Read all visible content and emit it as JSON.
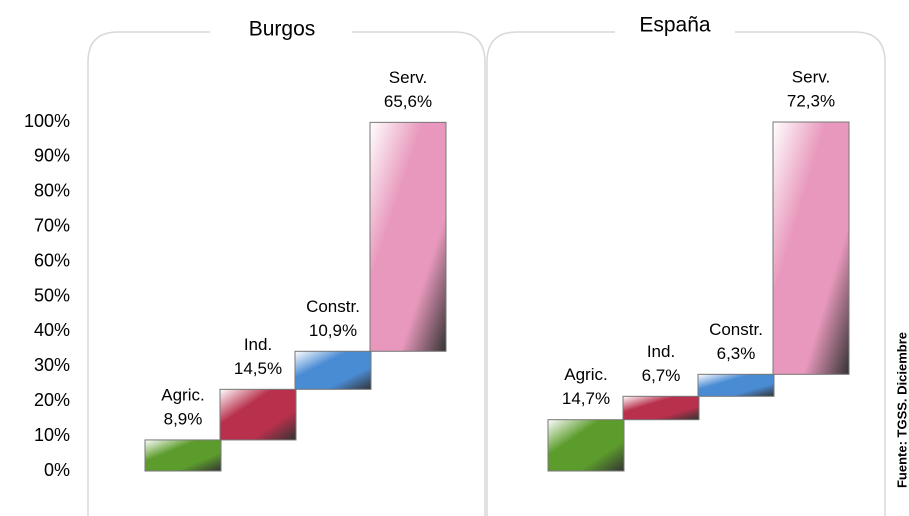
{
  "chart_data": [
    {
      "type": "waterfall",
      "title": "Burgos",
      "categories": [
        "Agric.",
        "Ind.",
        "Constr.",
        "Serv."
      ],
      "values": [
        8.9,
        14.5,
        10.9,
        65.6
      ],
      "value_labels": [
        "8,9%",
        "14,5%",
        "10,9%",
        "65,6%"
      ],
      "colors": [
        "#5c9c2c",
        "#b8304c",
        "#4a8cd4",
        "#e898bc"
      ],
      "ylim": [
        0,
        100
      ],
      "yticks": [
        {
          "value": 0,
          "label": "0%"
        },
        {
          "value": 10,
          "label": "10%"
        },
        {
          "value": 20,
          "label": "20%"
        },
        {
          "value": 30,
          "label": "30%"
        },
        {
          "value": 40,
          "label": "40%"
        },
        {
          "value": 50,
          "label": "50%"
        },
        {
          "value": 60,
          "label": "60%"
        },
        {
          "value": 70,
          "label": "70%"
        },
        {
          "value": 80,
          "label": "80%"
        },
        {
          "value": 90,
          "label": "90%"
        },
        {
          "value": 100,
          "label": "100%"
        }
      ]
    },
    {
      "type": "waterfall",
      "title": "España",
      "categories": [
        "Agric.",
        "Ind.",
        "Constr.",
        "Serv."
      ],
      "values": [
        14.7,
        6.7,
        6.3,
        72.3
      ],
      "value_labels": [
        "14,7%",
        "6,7%",
        "6,3%",
        "72,3%"
      ],
      "colors": [
        "#5c9c2c",
        "#b8304c",
        "#4a8cd4",
        "#e898bc"
      ],
      "ylim": [
        0,
        100
      ]
    }
  ],
  "source": "Fuente: TGSS. Diciembre"
}
